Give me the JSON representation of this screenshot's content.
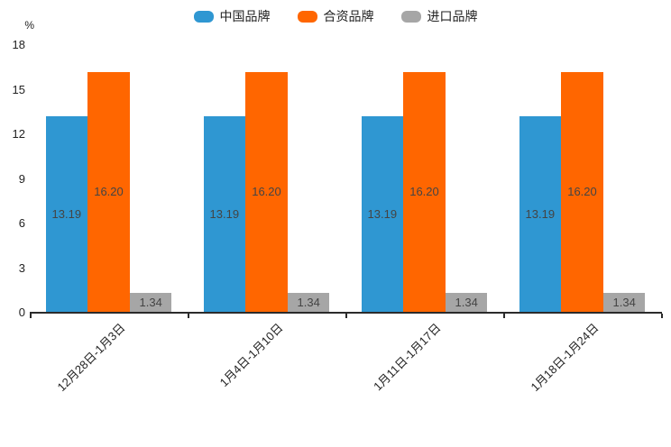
{
  "chart_data": {
    "type": "bar",
    "title": "",
    "unit": "%",
    "categories": [
      "12月28日-1月3日",
      "1月4日-1月10日",
      "1月11日-1月17日",
      "1月18日-1月24日"
    ],
    "series": [
      {
        "name": "中国品牌",
        "color": "#2F97D2",
        "values": [
          13.19,
          13.19,
          13.19,
          13.19
        ]
      },
      {
        "name": "合资品牌",
        "color": "#FF6600",
        "values": [
          16.2,
          16.2,
          16.2,
          16.2
        ]
      },
      {
        "name": "进口品牌",
        "color": "#A6A6A6",
        "values": [
          1.34,
          1.34,
          1.34,
          1.34
        ]
      }
    ],
    "value_label_decimals": 2,
    "ylim": [
      0,
      18
    ],
    "yticks": [
      0,
      3,
      6,
      9,
      12,
      15,
      18
    ],
    "legend_position": "top",
    "grid": false
  }
}
